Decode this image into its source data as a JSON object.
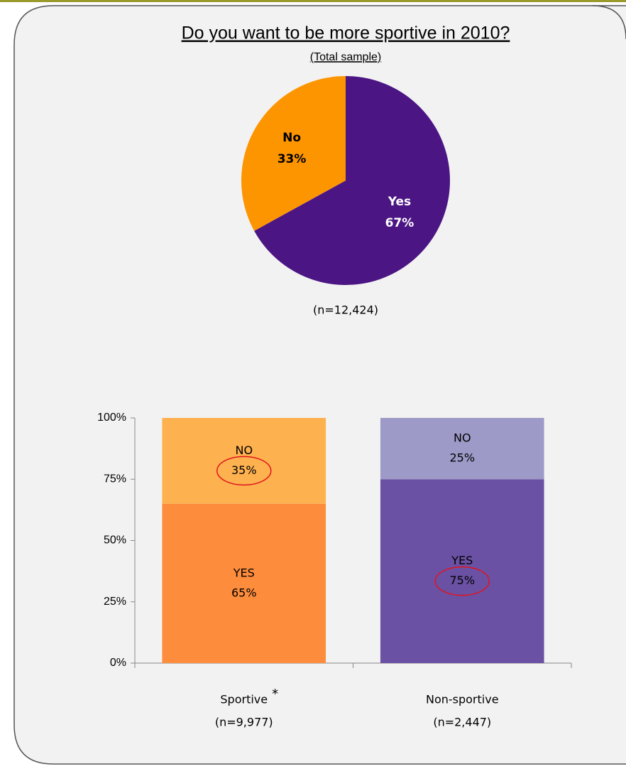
{
  "chart_data": [
    {
      "type": "pie",
      "title": "Do you want to be more sportive in 2010?",
      "subtitle": "(Total sample)",
      "categories": [
        "Yes",
        "No"
      ],
      "values": [
        67,
        33
      ],
      "value_labels": [
        "67%",
        "33%"
      ],
      "colors": [
        "#4b1584",
        "#fd9500"
      ],
      "label_colors": [
        "#ffffff",
        "#000000"
      ],
      "note": "(n=12,424)"
    },
    {
      "type": "bar",
      "stacked": true,
      "categories": [
        "Sportive",
        "Non-sportive"
      ],
      "category_marks": [
        "*",
        null
      ],
      "category_notes": [
        "(n=9,977)",
        "(n=2,447)"
      ],
      "series": [
        {
          "name": "YES",
          "colors": [
            "#fd8c3c",
            "#6a51a3"
          ],
          "values": [
            65,
            75
          ],
          "value_labels": [
            "65%",
            "75%"
          ],
          "highlight": [
            false,
            true
          ]
        },
        {
          "name": "NO",
          "colors": [
            "#fdb14f",
            "#9e9ac8"
          ],
          "values": [
            35,
            25
          ],
          "value_labels": [
            "35%",
            "25%"
          ],
          "highlight": [
            true,
            false
          ]
        }
      ],
      "ylim": [
        0,
        100
      ],
      "yticks": [
        {
          "value": 0,
          "label": "0%"
        },
        {
          "value": 25,
          "label": "25%"
        },
        {
          "value": 50,
          "label": "50%"
        },
        {
          "value": 75,
          "label": "75%"
        },
        {
          "value": 100,
          "label": "100%"
        }
      ],
      "highlight_color": "#e0141e"
    }
  ]
}
